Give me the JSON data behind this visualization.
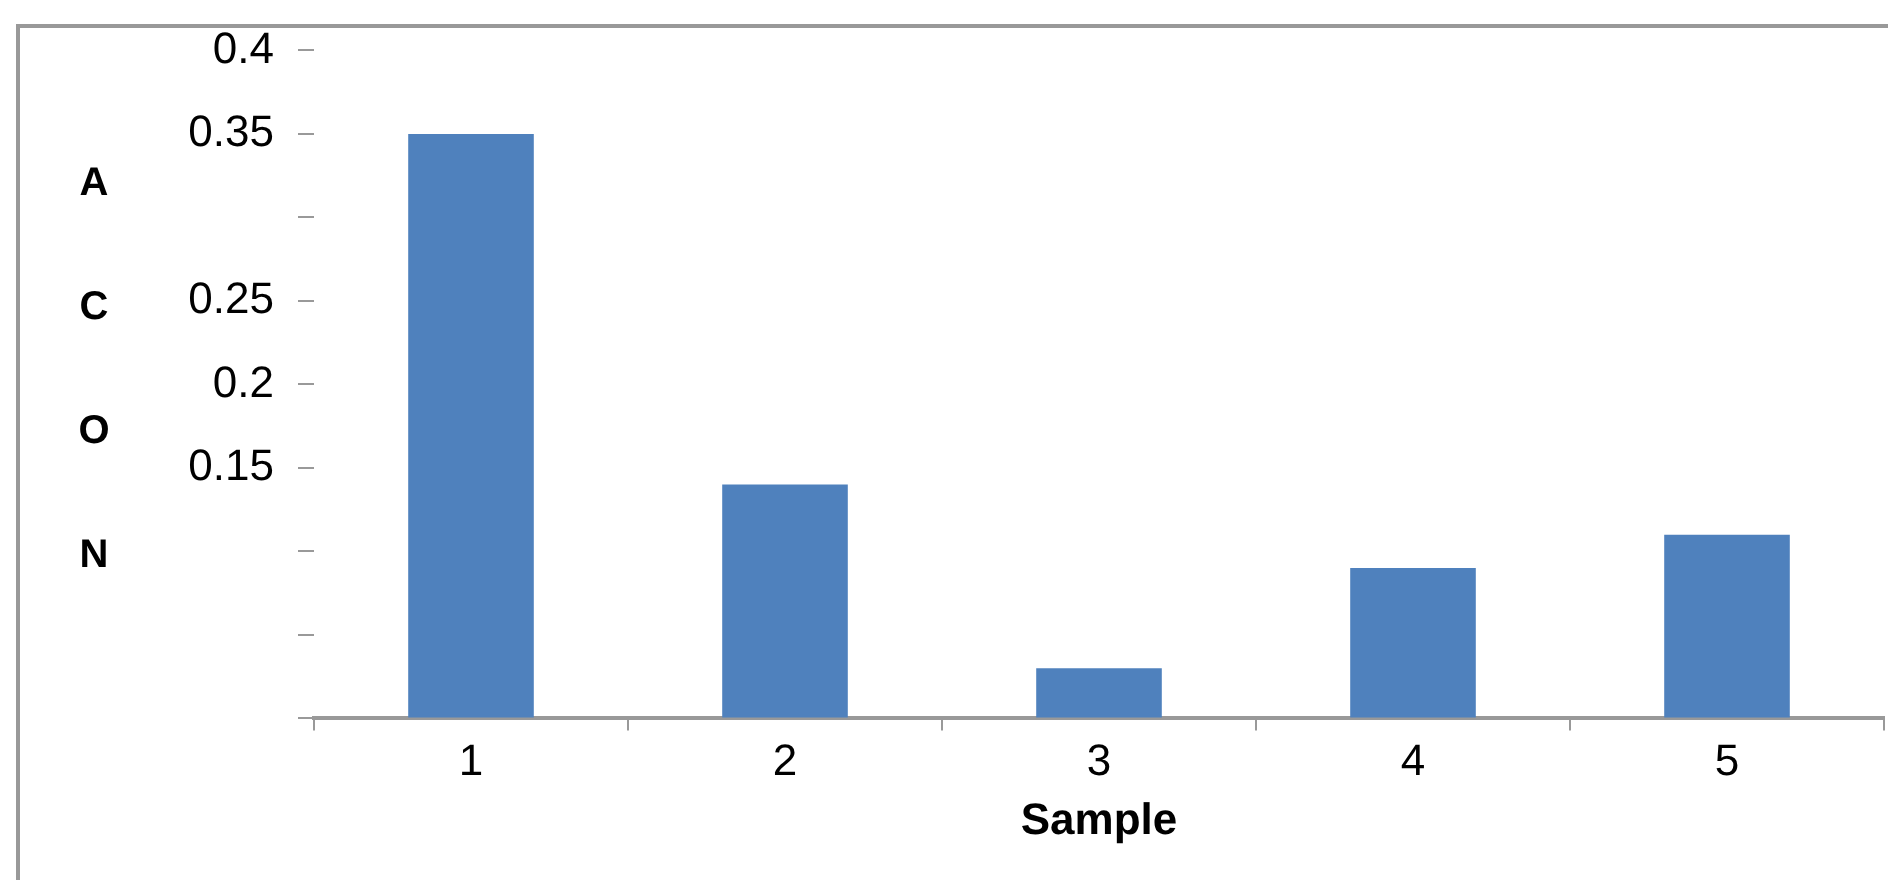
{
  "chart_data": {
    "type": "bar",
    "xlabel": "Sample",
    "ylabel": "ACON",
    "categories": [
      "1",
      "2",
      "3",
      "4",
      "5"
    ],
    "values": [
      0.35,
      0.14,
      0.03,
      0.09,
      0.11
    ],
    "color": "#4f81bd",
    "ylim": [
      0,
      0.4
    ],
    "yticks": [
      {
        "value": 0,
        "label": null
      },
      {
        "value": 0.05,
        "label": null
      },
      {
        "value": 0.1,
        "label": null
      },
      0.15,
      0.2,
      0.25,
      {
        "value": 0.3,
        "label": null
      },
      0.35,
      0.4
    ],
    "grid": false,
    "legend": false
  }
}
